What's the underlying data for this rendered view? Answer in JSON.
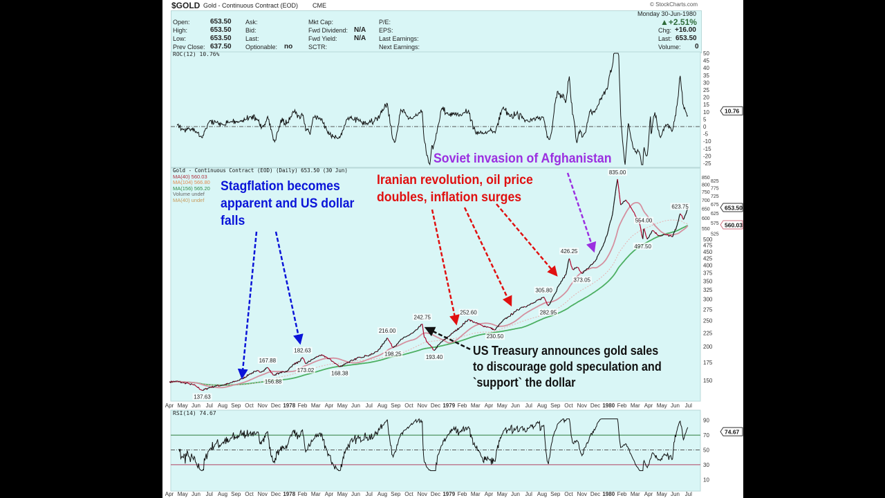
{
  "header": {
    "symbol": "$GOLD",
    "name": "Gold - Continuous Contract (EOD)",
    "exchange": "CME",
    "watermark": "© StockCharts.com",
    "date": "Monday  30-Jun-1980",
    "pct_change": "+2.51%",
    "chg_label": "Chg:",
    "chg": "+16.00",
    "last_label": "Last:",
    "last": "653.50",
    "volume_label": "Volume:",
    "volume": "0"
  },
  "quote": {
    "col1": [
      {
        "label": "Open:",
        "value": "653.50"
      },
      {
        "label": "High:",
        "value": "653.50"
      },
      {
        "label": "Low:",
        "value": "653.50"
      },
      {
        "label": "Prev Close:",
        "value": "637.50"
      }
    ],
    "col2": [
      {
        "label": "Ask:",
        "value": ""
      },
      {
        "label": "Bid:",
        "value": ""
      },
      {
        "label": "Last:",
        "value": ""
      },
      {
        "label": "Optionable:",
        "value": "no"
      }
    ],
    "col3": [
      {
        "label": "Mkt Cap:",
        "value": ""
      },
      {
        "label": "Fwd Dividend:",
        "value": "N/A"
      },
      {
        "label": "Fwd Yield:",
        "value": "N/A"
      },
      {
        "label": "SCTR:",
        "value": ""
      }
    ],
    "col4": [
      {
        "label": "P/E:",
        "value": ""
      },
      {
        "label": "EPS:",
        "value": ""
      },
      {
        "label": "Last Earnings:",
        "value": ""
      },
      {
        "label": "Next Earnings:",
        "value": ""
      }
    ]
  },
  "colors": {
    "background": "#d9f6f6",
    "price": "#111111",
    "price_down": "#b0002a",
    "ma40": "#d4909f",
    "ma104": "#e8b0b0",
    "ma156": "#4caf62",
    "up_arrow": "#2e6b3a",
    "blue_note": "#0a14d8",
    "red_note": "#e01010",
    "purple_note": "#9b2fe0",
    "black_note": "#111111"
  },
  "chart_data": [
    {
      "type": "line",
      "panel": "ROC",
      "title": "ROC(12) 10.76%",
      "current_tag": "10.76",
      "yticks": [
        50,
        45,
        40,
        35,
        30,
        25,
        20,
        15,
        10,
        5,
        0,
        -5,
        -10,
        -15,
        -20,
        -25
      ],
      "ylim": [
        -25,
        50
      ],
      "zero_line": true
    },
    {
      "type": "line",
      "panel": "price",
      "yscale": "log",
      "ylim": [
        140,
        870
      ],
      "legend": [
        "Gold - Continuous Contract (EOD) (Daily) 653.50 (30 Jun)",
        "MA(40) 560.03",
        "MA(104) 566.80",
        "MA(156) 565.20",
        "Volume undef",
        "MA(40) undef"
      ],
      "yticks": [
        850,
        825,
        800,
        775,
        750,
        725,
        700,
        675,
        650,
        625,
        600,
        575,
        550,
        525,
        500,
        475,
        450,
        425,
        400,
        375,
        350,
        325,
        300,
        275,
        250,
        225,
        200,
        175,
        150
      ],
      "current_tags": [
        "653.50",
        "560.03"
      ],
      "xticks": [
        "Apr",
        "May",
        "Jun",
        "Jul",
        "Aug",
        "Sep",
        "Oct",
        "Nov",
        "Dec",
        "1978",
        "Feb",
        "Mar",
        "Apr",
        "May",
        "Jun",
        "Jul",
        "Aug",
        "Sep",
        "Oct",
        "Nov",
        "Dec",
        "1979",
        "Feb",
        "Mar",
        "Apr",
        "May",
        "Jun",
        "Jul",
        "Aug",
        "Sep",
        "Oct",
        "Nov",
        "Dec",
        "1980",
        "Feb",
        "Mar",
        "Apr",
        "May",
        "Jun",
        "Jul"
      ],
      "series": [
        {
          "name": "Gold - Continuous Contract (EOD)",
          "points": [
            [
              "1977-04-01",
              148
            ],
            [
              "1977-04-15",
              149
            ],
            [
              "1977-05-01",
              147
            ],
            [
              "1977-05-15",
              146
            ],
            [
              "1977-06-01",
              143
            ],
            [
              "1977-06-15",
              137.63
            ],
            [
              "1977-07-01",
              141
            ],
            [
              "1977-07-15",
              143
            ],
            [
              "1977-08-01",
              144
            ],
            [
              "1977-08-15",
              146
            ],
            [
              "1977-09-01",
              149
            ],
            [
              "1977-09-15",
              152
            ],
            [
              "1977-10-01",
              158
            ],
            [
              "1977-10-15",
              162
            ],
            [
              "1977-11-01",
              162
            ],
            [
              "1977-11-12",
              167.88
            ],
            [
              "1977-11-25",
              156.88
            ],
            [
              "1977-12-10",
              160
            ],
            [
              "1977-12-28",
              163
            ],
            [
              "1978-01-10",
              172
            ],
            [
              "1978-01-25",
              176
            ],
            [
              "1978-02-01",
              182.63
            ],
            [
              "1978-02-08",
              173.02
            ],
            [
              "1978-02-25",
              180
            ],
            [
              "1978-03-10",
              186
            ],
            [
              "1978-03-25",
              183
            ],
            [
              "1978-04-10",
              176
            ],
            [
              "1978-04-25",
              168.38
            ],
            [
              "1978-05-10",
              174
            ],
            [
              "1978-05-25",
              178
            ],
            [
              "1978-06-10",
              183
            ],
            [
              "1978-06-25",
              185
            ],
            [
              "1978-07-10",
              188
            ],
            [
              "1978-07-25",
              196
            ],
            [
              "1978-08-12",
              216.0
            ],
            [
              "1978-08-25",
              198.25
            ],
            [
              "1978-09-10",
              210
            ],
            [
              "1978-09-25",
              218
            ],
            [
              "1978-10-10",
              225
            ],
            [
              "1978-10-20",
              232
            ],
            [
              "1978-10-31",
              242.75
            ],
            [
              "1978-11-05",
              218
            ],
            [
              "1978-11-15",
              205
            ],
            [
              "1978-11-28",
              193.4
            ],
            [
              "1978-12-10",
              205
            ],
            [
              "1978-12-25",
              215
            ],
            [
              "1979-01-10",
              225
            ],
            [
              "1979-01-25",
              235
            ],
            [
              "1979-02-15",
              252.6
            ],
            [
              "1979-03-01",
              245
            ],
            [
              "1979-03-15",
              240
            ],
            [
              "1979-04-01",
              236
            ],
            [
              "1979-04-15",
              230.5
            ],
            [
              "1979-05-01",
              248
            ],
            [
              "1979-05-15",
              258
            ],
            [
              "1979-06-01",
              270
            ],
            [
              "1979-06-15",
              280
            ],
            [
              "1979-07-01",
              285
            ],
            [
              "1979-07-15",
              292
            ],
            [
              "1979-08-05",
              305.8
            ],
            [
              "1979-08-15",
              282.95
            ],
            [
              "1979-08-28",
              310
            ],
            [
              "1979-09-10",
              340
            ],
            [
              "1979-09-25",
              370
            ],
            [
              "1979-10-02",
              426.25
            ],
            [
              "1979-10-10",
              385
            ],
            [
              "1979-10-20",
              395
            ],
            [
              "1979-11-01",
              373.05
            ],
            [
              "1979-11-15",
              390
            ],
            [
              "1979-12-01",
              415
            ],
            [
              "1979-12-15",
              460
            ],
            [
              "1979-12-28",
              520
            ],
            [
              "1980-01-10",
              620
            ],
            [
              "1980-01-21",
              835.0
            ],
            [
              "1980-01-28",
              670
            ],
            [
              "1980-02-10",
              700
            ],
            [
              "1980-02-25",
              640
            ],
            [
              "1980-03-10",
              580
            ],
            [
              "1980-03-18",
              497.5
            ],
            [
              "1980-03-20",
              554.0
            ],
            [
              "1980-03-28",
              500
            ],
            [
              "1980-04-10",
              540
            ],
            [
              "1980-04-25",
              515
            ],
            [
              "1980-05-10",
              520
            ],
            [
              "1980-05-25",
              510
            ],
            [
              "1980-06-05",
              560
            ],
            [
              "1980-06-12",
              623.75
            ],
            [
              "1980-06-20",
              590
            ],
            [
              "1980-06-30",
              653.5
            ]
          ]
        }
      ],
      "price_labels": [
        {
          "text": "137.63",
          "date": "1977-06-15",
          "value": 137.63,
          "kind": "low"
        },
        {
          "text": "167.88",
          "date": "1977-11-12",
          "value": 167.88,
          "kind": "high"
        },
        {
          "text": "156.88",
          "date": "1977-11-25",
          "value": 156.88,
          "kind": "low"
        },
        {
          "text": "182.63",
          "date": "1978-02-01",
          "value": 182.63,
          "kind": "high"
        },
        {
          "text": "173.02",
          "date": "1978-02-08",
          "value": 173.02,
          "kind": "low"
        },
        {
          "text": "168.38",
          "date": "1978-04-25",
          "value": 168.38,
          "kind": "low"
        },
        {
          "text": "216.00",
          "date": "1978-08-12",
          "value": 216.0,
          "kind": "high"
        },
        {
          "text": "198.25",
          "date": "1978-08-25",
          "value": 198.25,
          "kind": "low"
        },
        {
          "text": "242.75",
          "date": "1978-10-31",
          "value": 242.75,
          "kind": "high"
        },
        {
          "text": "193.40",
          "date": "1978-11-28",
          "value": 193.4,
          "kind": "low"
        },
        {
          "text": "252.60",
          "date": "1979-02-15",
          "value": 252.6,
          "kind": "high"
        },
        {
          "text": "230.50",
          "date": "1979-04-15",
          "value": 230.5,
          "kind": "low"
        },
        {
          "text": "305.80",
          "date": "1979-08-05",
          "value": 305.8,
          "kind": "high"
        },
        {
          "text": "282.95",
          "date": "1979-08-15",
          "value": 282.95,
          "kind": "low"
        },
        {
          "text": "426.25",
          "date": "1979-10-02",
          "value": 426.25,
          "kind": "high"
        },
        {
          "text": "373.05",
          "date": "1979-11-01",
          "value": 373.05,
          "kind": "low"
        },
        {
          "text": "835.00",
          "date": "1980-01-21",
          "value": 835.0,
          "kind": "high"
        },
        {
          "text": "554.00",
          "date": "1980-03-20",
          "value": 554.0,
          "kind": "high"
        },
        {
          "text": "497.50",
          "date": "1980-03-18",
          "value": 497.5,
          "kind": "low"
        },
        {
          "text": "623.75",
          "date": "1980-06-12",
          "value": 623.75,
          "kind": "high"
        }
      ]
    },
    {
      "type": "line",
      "panel": "RSI",
      "title": "RSI(14) 74.67",
      "current_tag": "74.67",
      "yticks": [
        90,
        70,
        50,
        30,
        10
      ],
      "ylim": [
        0,
        100
      ],
      "overbought": 70,
      "oversold": 30
    }
  ],
  "annotations": {
    "stagflation": [
      "Stagflation becomes",
      "apparent and US dollar",
      "falls"
    ],
    "iran": [
      "Iranian revolution, oil price",
      "doubles, inflation surges"
    ],
    "afghanistan": [
      "Soviet invasion of Afghanistan"
    ],
    "treasury": [
      "US Treasury announces gold sales",
      "to discourage gold speculation and",
      "`support` the dollar"
    ]
  }
}
